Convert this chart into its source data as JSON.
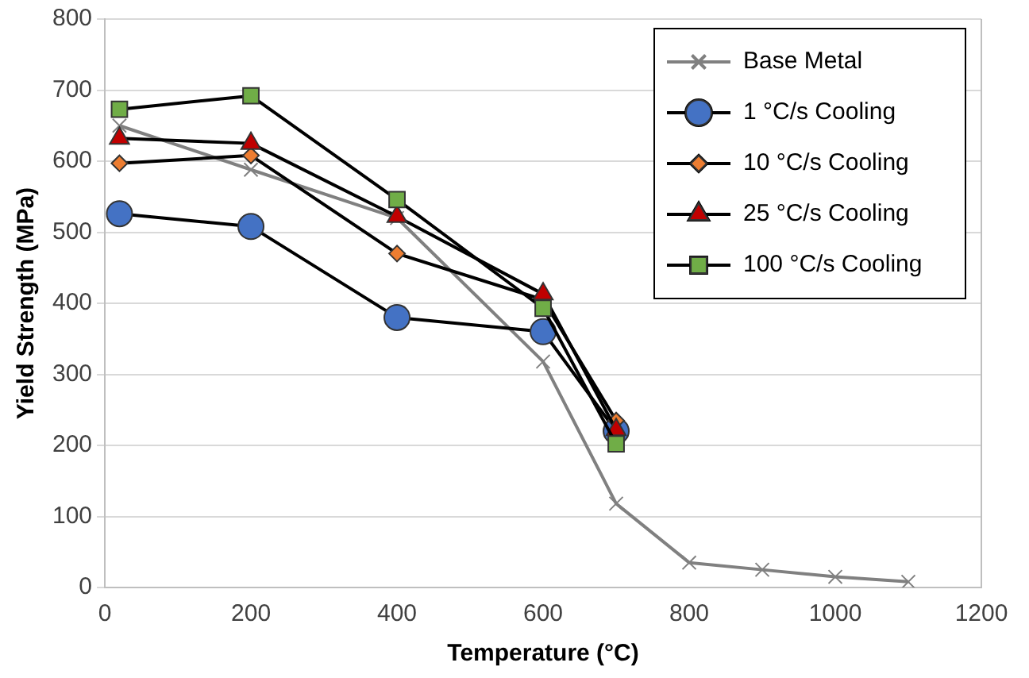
{
  "chart_data": {
    "type": "line",
    "xlabel": "Temperature (°C)",
    "ylabel": "Yield Strength (MPa)",
    "xlim": [
      0,
      1200
    ],
    "xticks": [
      0,
      200,
      400,
      600,
      800,
      1000,
      1200
    ],
    "ylim": [
      0,
      800
    ],
    "yticks": [
      0,
      100,
      200,
      300,
      400,
      500,
      600,
      700,
      800
    ],
    "grid": "y",
    "legend": "top right",
    "series": [
      {
        "name": "Base Metal",
        "color": "#808080",
        "marker": "cross",
        "x": [
          20,
          200,
          400,
          600,
          700,
          800,
          900,
          1000,
          1100
        ],
        "values": [
          650,
          588,
          520,
          318,
          118,
          35,
          25,
          15,
          8
        ]
      },
      {
        "name": "1 °C/s Cooling",
        "color": "#4472c4",
        "marker": "circle",
        "x": [
          20,
          200,
          400,
          600,
          700
        ],
        "values": [
          526,
          508,
          380,
          360,
          220
        ]
      },
      {
        "name": "10 °C/s Cooling",
        "color": "#ed7d31",
        "marker": "diamond",
        "x": [
          20,
          200,
          400,
          600,
          700
        ],
        "values": [
          597,
          608,
          470,
          405,
          235
        ]
      },
      {
        "name": "25 °C/s Cooling",
        "color": "#c00000",
        "marker": "triangle",
        "x": [
          20,
          200,
          400,
          600,
          700
        ],
        "values": [
          632,
          625,
          522,
          413,
          222
        ]
      },
      {
        "name": "100 °C/s Cooling",
        "color": "#70ad47",
        "marker": "square",
        "x": [
          20,
          200,
          400,
          600,
          700
        ],
        "values": [
          673,
          692,
          546,
          393,
          202
        ]
      }
    ]
  }
}
